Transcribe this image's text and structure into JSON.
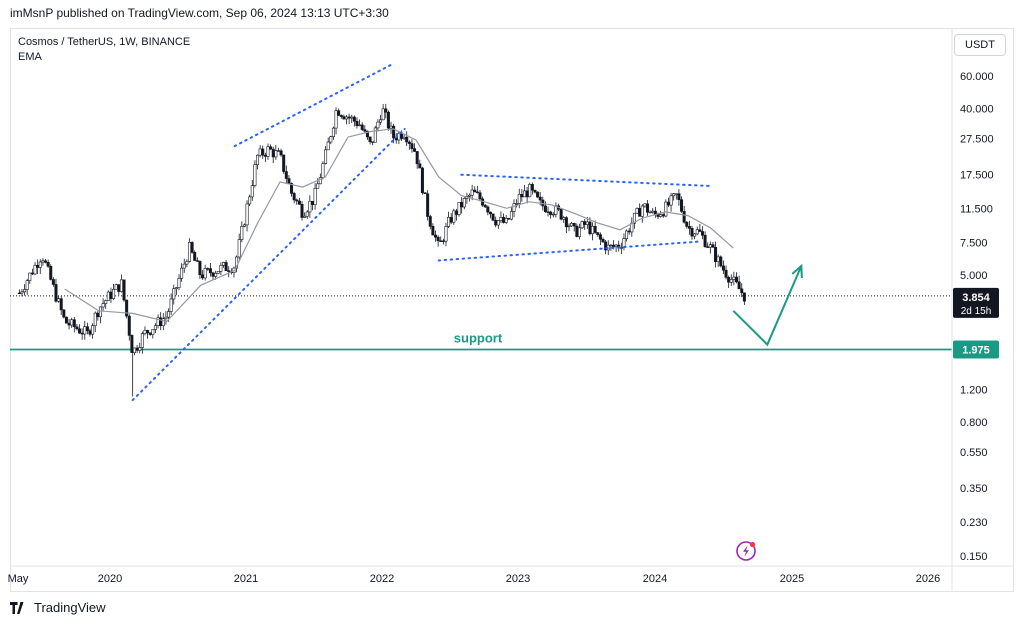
{
  "header": {
    "published_line": "imMsnP published on TradingView.com, Sep 06, 2024 13:13 UTC+3:30"
  },
  "legend": {
    "symbol_line": "Cosmos / TetherUS, 1W, BINANCE",
    "indicator": "EMA"
  },
  "currency_button": "USDT",
  "footer": {
    "brand": "TradingView"
  },
  "colors": {
    "up": "#131722",
    "down": "#131722",
    "ema": "#9598a1",
    "trendline": "#2962ff",
    "support": "#1a9a85",
    "price_label": "#131722"
  },
  "chart_data": {
    "type": "candlestick",
    "symbol": "Cosmos / TetherUS",
    "interval": "1W",
    "exchange": "BINANCE",
    "y_scale": "log",
    "ylim": [
      0.13,
      85
    ],
    "y_ticks": [
      "60.000",
      "40.000",
      "27.500",
      "17.500",
      "11.500",
      "7.500",
      "5.000",
      "1.200",
      "0.800",
      "0.550",
      "0.350",
      "0.230",
      "0.150"
    ],
    "x_ticks": [
      "May",
      "2020",
      "2021",
      "2022",
      "2023",
      "2024",
      "2025",
      "2026"
    ],
    "last_price": {
      "value": "3.854",
      "countdown": "2d 15h"
    },
    "support": {
      "label": "support",
      "value": "1.975"
    },
    "price_path": [
      [
        "2019-05",
        4.0
      ],
      [
        "2019-07",
        6.5
      ],
      [
        "2019-09",
        2.8
      ],
      [
        "2019-11",
        2.4
      ],
      [
        "2019-12",
        3.3
      ],
      [
        "2020-01",
        3.9
      ],
      [
        "2020-02",
        4.5
      ],
      [
        "2020-03",
        1.9
      ],
      [
        "2020-04",
        2.4
      ],
      [
        "2020-06",
        3.0
      ],
      [
        "2020-08",
        7.0
      ],
      [
        "2020-09",
        5.0
      ],
      [
        "2020-11",
        5.5
      ],
      [
        "2020-12",
        5.6
      ],
      [
        "2021-01",
        11.0
      ],
      [
        "2021-02",
        22.0
      ],
      [
        "2021-03",
        24.0
      ],
      [
        "2021-04",
        22.0
      ],
      [
        "2021-05",
        14.0
      ],
      [
        "2021-06",
        11.0
      ],
      [
        "2021-07",
        13.0
      ],
      [
        "2021-08",
        22.0
      ],
      [
        "2021-09",
        40.0
      ],
      [
        "2021-10",
        36.0
      ],
      [
        "2021-11",
        33.0
      ],
      [
        "2021-12",
        25.0
      ],
      [
        "2022-01",
        40.0
      ],
      [
        "2022-02",
        28.0
      ],
      [
        "2022-03",
        30.0
      ],
      [
        "2022-04",
        23.0
      ],
      [
        "2022-05",
        11.0
      ],
      [
        "2022-06",
        7.0
      ],
      [
        "2022-07",
        10.0
      ],
      [
        "2022-08",
        12.0
      ],
      [
        "2022-09",
        14.0
      ],
      [
        "2022-10",
        12.5
      ],
      [
        "2022-11",
        10.0
      ],
      [
        "2022-12",
        9.5
      ],
      [
        "2023-01",
        13.0
      ],
      [
        "2023-02",
        14.5
      ],
      [
        "2023-03",
        12.0
      ],
      [
        "2023-04",
        11.5
      ],
      [
        "2023-05",
        10.5
      ],
      [
        "2023-06",
        8.5
      ],
      [
        "2023-07",
        9.5
      ],
      [
        "2023-08",
        8.0
      ],
      [
        "2023-09",
        7.0
      ],
      [
        "2023-10",
        7.3
      ],
      [
        "2023-11",
        9.5
      ],
      [
        "2023-12",
        12.0
      ],
      [
        "2024-01",
        10.5
      ],
      [
        "2024-02",
        11.5
      ],
      [
        "2024-03",
        13.5
      ],
      [
        "2024-04",
        9.0
      ],
      [
        "2024-05",
        8.5
      ],
      [
        "2024-06",
        7.0
      ],
      [
        "2024-07",
        5.5
      ],
      [
        "2024-08",
        4.6
      ],
      [
        "2024-09",
        3.854
      ]
    ],
    "ema_path": [
      [
        "2019-09",
        4.2
      ],
      [
        "2019-12",
        3.2
      ],
      [
        "2020-03",
        3.1
      ],
      [
        "2020-06",
        2.8
      ],
      [
        "2020-09",
        4.4
      ],
      [
        "2020-12",
        5.3
      ],
      [
        "2021-02",
        9.5
      ],
      [
        "2021-04",
        16.0
      ],
      [
        "2021-06",
        15.0
      ],
      [
        "2021-08",
        17.0
      ],
      [
        "2021-10",
        28.0
      ],
      [
        "2021-12",
        30.0
      ],
      [
        "2022-02",
        31.0
      ],
      [
        "2022-04",
        27.0
      ],
      [
        "2022-06",
        17.0
      ],
      [
        "2022-08",
        13.5
      ],
      [
        "2022-10",
        12.5
      ],
      [
        "2022-12",
        11.5
      ],
      [
        "2023-02",
        12.5
      ],
      [
        "2023-04",
        12.0
      ],
      [
        "2023-06",
        10.8
      ],
      [
        "2023-08",
        9.6
      ],
      [
        "2023-10",
        8.8
      ],
      [
        "2023-12",
        10.2
      ],
      [
        "2024-02",
        11.0
      ],
      [
        "2024-04",
        10.5
      ],
      [
        "2024-06",
        9.0
      ],
      [
        "2024-08",
        7.0
      ]
    ],
    "drawings": [
      {
        "kind": "dotted-line",
        "from": [
          "2020-03",
          1.05
        ],
        "to": [
          "2022-03",
          31.0
        ]
      },
      {
        "kind": "dotted-line",
        "from": [
          "2020-12",
          25.0
        ],
        "to": [
          "2022-02",
          70.0
        ]
      },
      {
        "kind": "dotted-line",
        "from": [
          "2022-08",
          17.5
        ],
        "to": [
          "2024-06",
          15.2
        ]
      },
      {
        "kind": "dotted-line",
        "from": [
          "2022-06",
          6.0
        ],
        "to": [
          "2024-05",
          7.6
        ]
      },
      {
        "kind": "arrow-path",
        "points": [
          [
            "2024-08",
            3.2
          ],
          [
            "2024-11",
            2.1
          ],
          [
            "2025-02",
            5.6
          ]
        ]
      }
    ]
  }
}
